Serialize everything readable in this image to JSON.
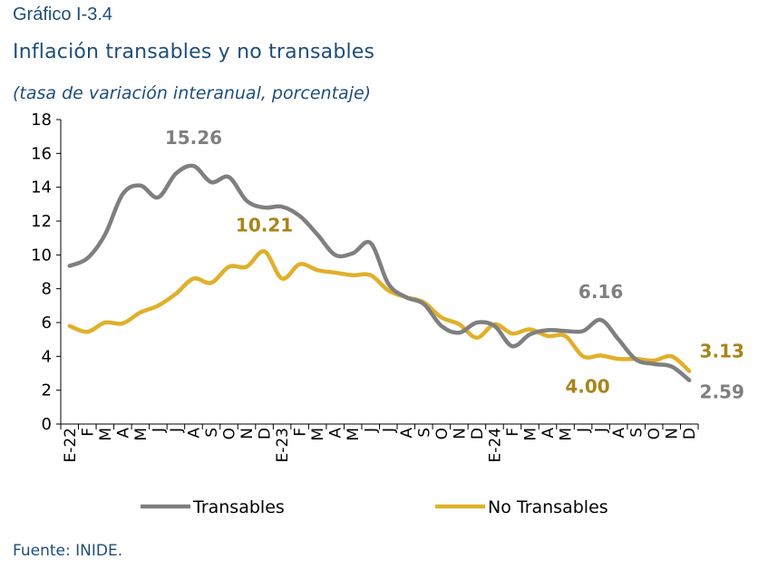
{
  "header": {
    "figure_label": "Gráfico I-3.4",
    "title": "Inflación transables y no transables",
    "subtitle": "(tasa de variación interanual, porcentaje)"
  },
  "footer": {
    "source": "Fuente: INIDE."
  },
  "chart_data": {
    "type": "line",
    "title": "Inflación transables y no transables",
    "subtitle": "(tasa de variación interanual, porcentaje)",
    "xlabel": "",
    "ylabel": "",
    "ylim": [
      0,
      18
    ],
    "yticks": [
      "0",
      "2",
      "4",
      "6",
      "8",
      "10",
      "12",
      "14",
      "16",
      "18"
    ],
    "grid": false,
    "legend_position": "bottom",
    "categories": [
      "E-22",
      "F",
      "M",
      "A",
      "M",
      "J",
      "J",
      "A",
      "S",
      "O",
      "N",
      "D",
      "E-23",
      "F",
      "M",
      "A",
      "M",
      "J",
      "J",
      "A",
      "S",
      "O",
      "N",
      "D",
      "E-24",
      "F",
      "M",
      "A",
      "M",
      "J",
      "J",
      "A",
      "S",
      "O",
      "N",
      "D"
    ],
    "series": [
      {
        "name": "Transables",
        "color": "#7f7f7f",
        "values": [
          9.35,
          9.8,
          11.2,
          13.6,
          14.1,
          13.4,
          14.8,
          15.26,
          14.3,
          14.6,
          13.2,
          12.8,
          12.85,
          12.3,
          11.2,
          10.0,
          10.1,
          10.7,
          8.3,
          7.5,
          7.1,
          5.8,
          5.4,
          6.0,
          5.8,
          4.6,
          5.3,
          5.55,
          5.5,
          5.5,
          6.16,
          5.0,
          3.8,
          3.55,
          3.4,
          2.59
        ]
      },
      {
        "name": "No Transables",
        "color": "#e0b02a",
        "values": [
          5.8,
          5.45,
          6.0,
          5.95,
          6.6,
          7.0,
          7.7,
          8.6,
          8.35,
          9.3,
          9.3,
          10.21,
          8.6,
          9.45,
          9.1,
          8.95,
          8.8,
          8.8,
          7.9,
          7.5,
          7.2,
          6.3,
          5.9,
          5.1,
          5.9,
          5.35,
          5.6,
          5.2,
          5.2,
          4.0,
          4.05,
          3.85,
          3.85,
          3.75,
          4.0,
          3.13
        ]
      }
    ],
    "annotations": [
      {
        "text": "15.26",
        "series": "Transables",
        "index": 7
      },
      {
        "text": "10.21",
        "series": "No Transables",
        "index": 11
      },
      {
        "text": "6.16",
        "series": "Transables",
        "index": 30
      },
      {
        "text": "4.00",
        "series": "No Transables",
        "index": 29
      },
      {
        "text": "3.13",
        "series": "No Transables",
        "index": 35
      },
      {
        "text": "2.59",
        "series": "Transables",
        "index": 35
      }
    ]
  }
}
